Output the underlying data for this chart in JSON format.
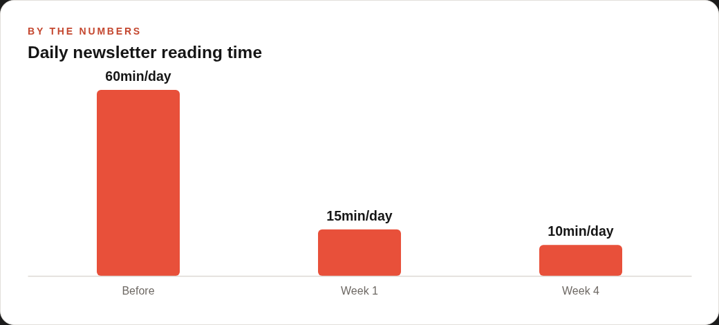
{
  "chart_data": {
    "type": "bar",
    "subtitle": "BY THE NUMBERS",
    "title": "Daily newsletter reading time",
    "categories": [
      "Before",
      "Week 1",
      "Week 4"
    ],
    "values": [
      60,
      15,
      10
    ],
    "color": "#e8503a",
    "value_labels": [
      "60min/day",
      "15min/day",
      "10min/day"
    ]
  }
}
